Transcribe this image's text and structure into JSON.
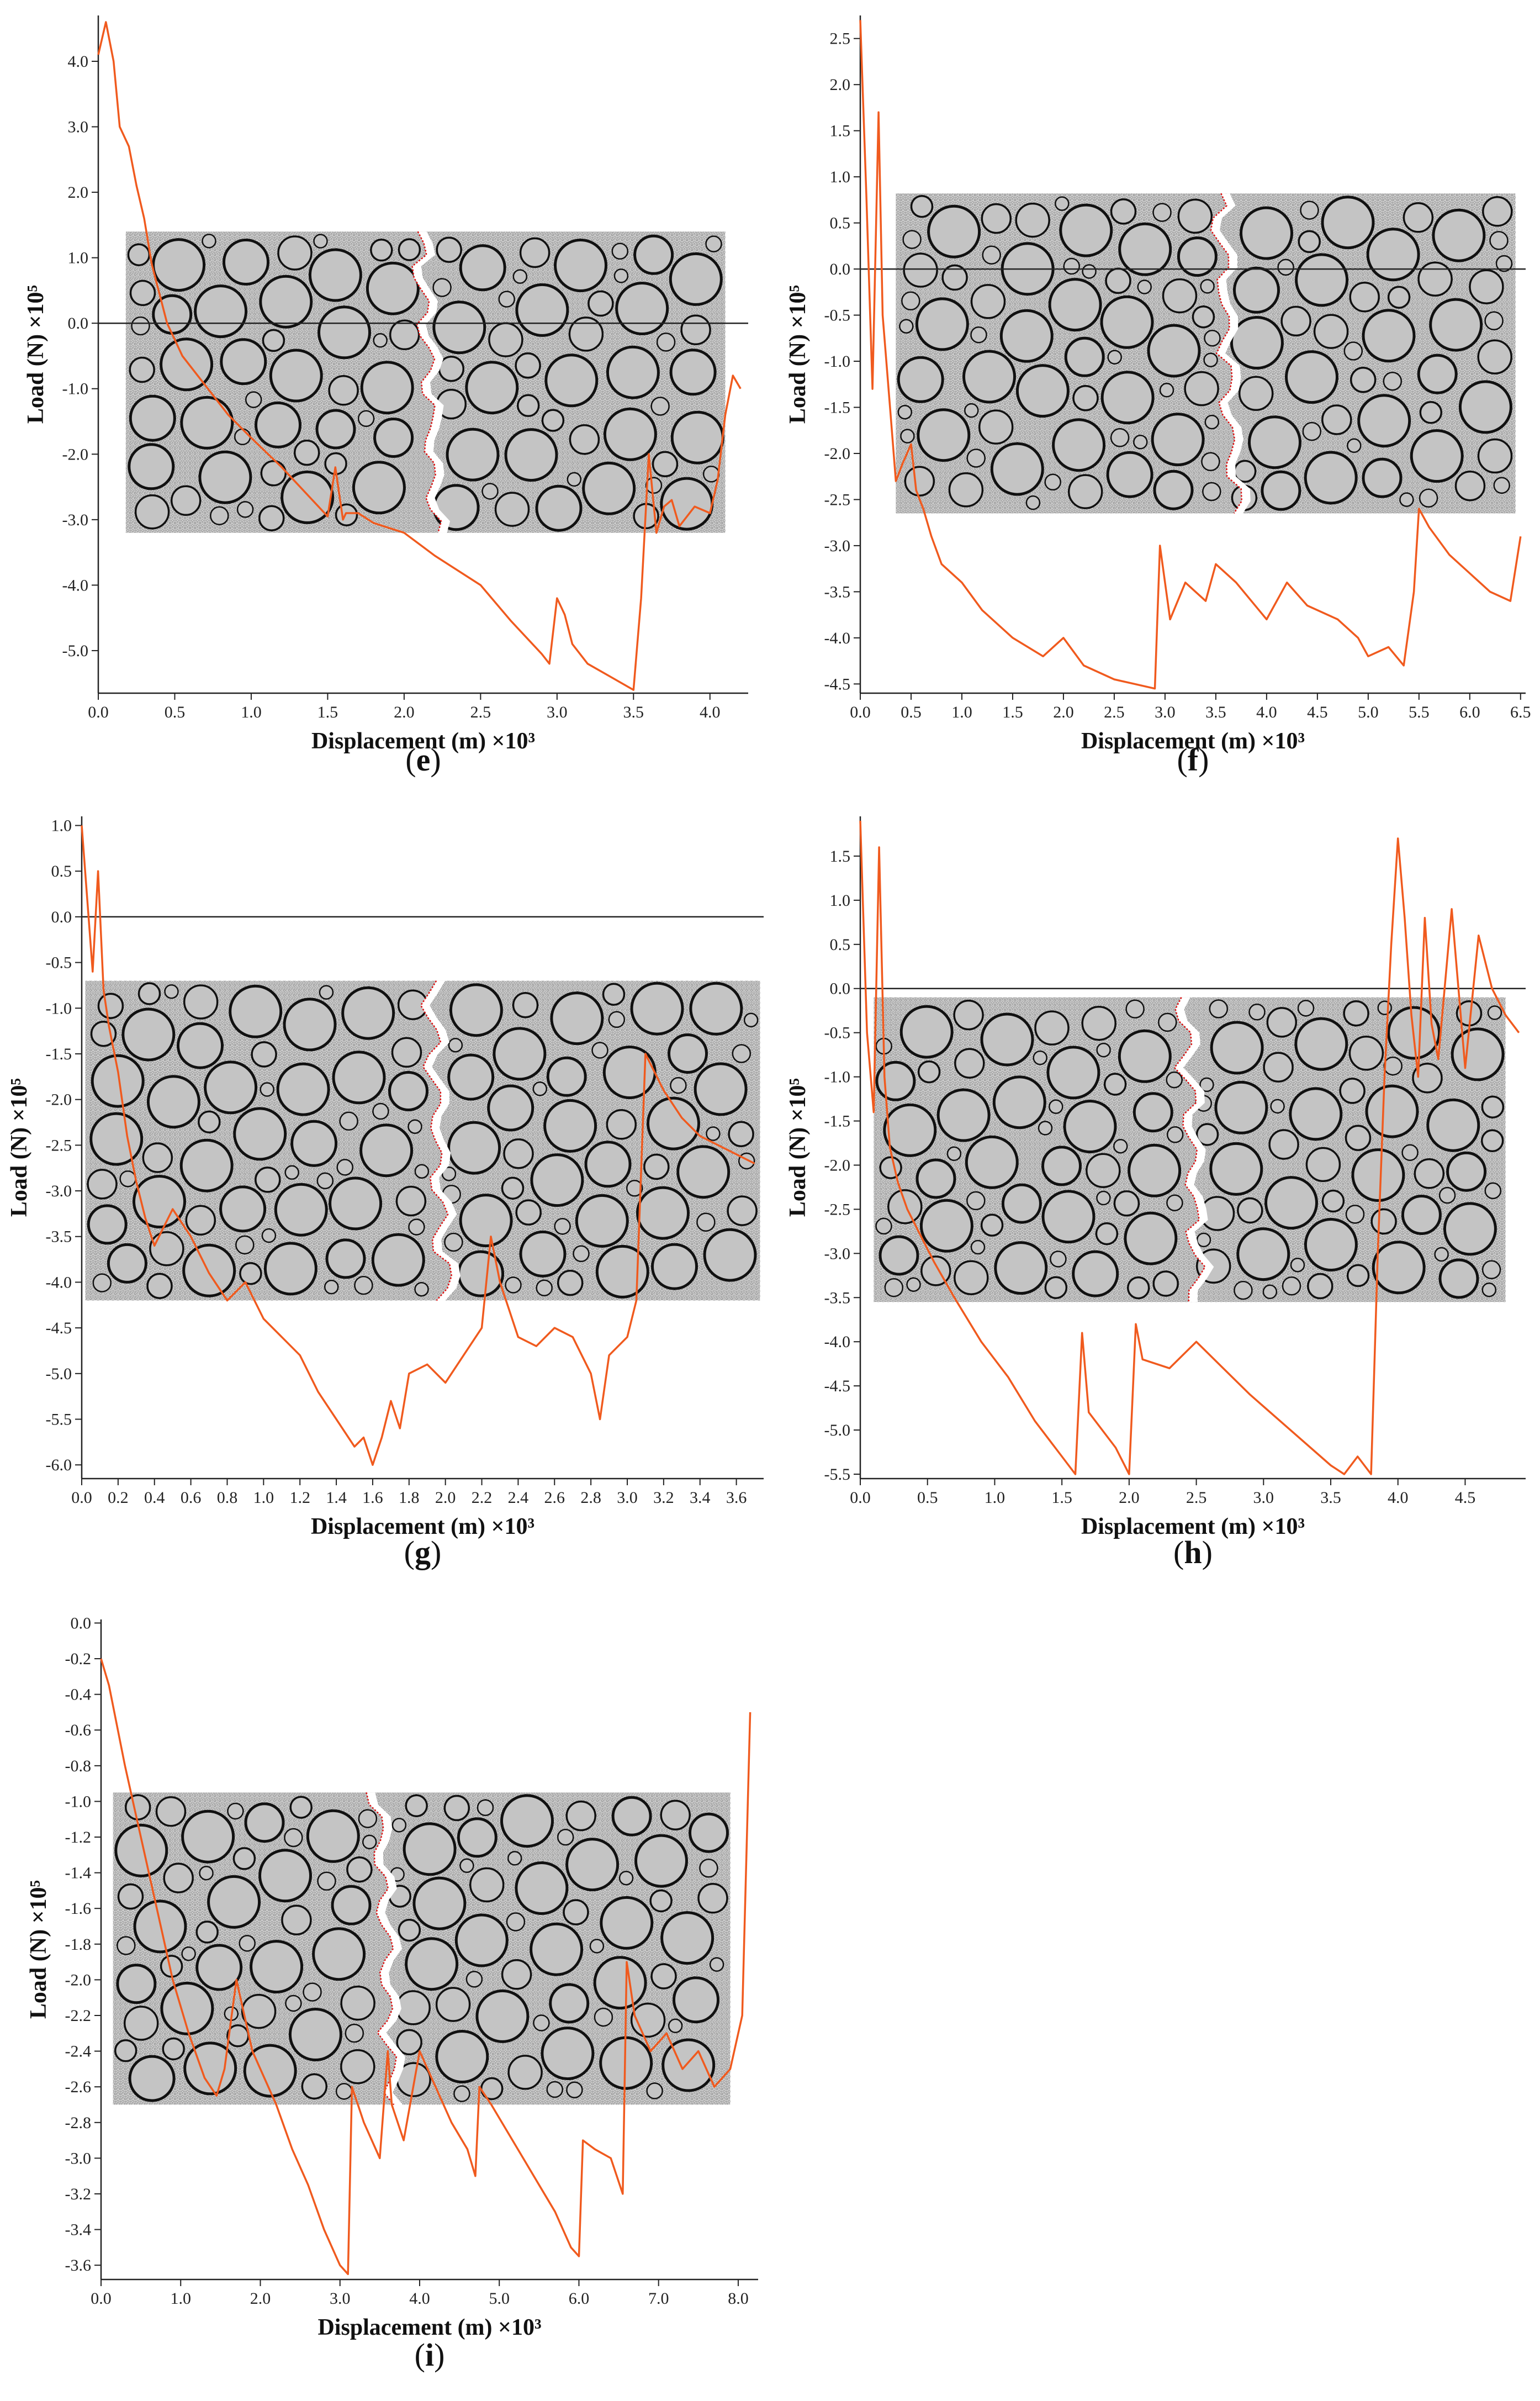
{
  "figure": {
    "colors": {
      "curve": "#f05a1e",
      "axis": "#222222",
      "zero_line": "#222222",
      "specimen_bg": "#d6d6d6",
      "aggregate_fill": "#c4c4c4",
      "aggregate_stroke": "#111111",
      "crack": "#dd1111"
    },
    "icons": {
      "specimen": "concrete-specimen-image"
    }
  },
  "chart_data": [
    {
      "id": "e",
      "type": "line",
      "label": "e",
      "xlabel": "Displacement (m) ×10³",
      "ylabel": "Load (N) ×10⁵",
      "xlim": [
        0,
        4.25
      ],
      "ylim": [
        -5.65,
        4.7
      ],
      "x_ticks": [
        "0.0",
        "0.5",
        "1.0",
        "1.5",
        "2.0",
        "2.5",
        "3.0",
        "3.5",
        "4.0"
      ],
      "y_ticks": [
        "4.0",
        "3.0",
        "2.0",
        "1.0",
        "0.0",
        "-1.0",
        "-2.0",
        "-3.0",
        "-4.0",
        "-5.0"
      ],
      "zero_line": true,
      "specimen": {
        "x": [
          0.18,
          4.1
        ],
        "y": [
          -3.2,
          1.4
        ],
        "crack_x": 2.15
      },
      "series": [
        {
          "name": "load-displacement",
          "x": [
            0.0,
            0.05,
            0.1,
            0.14,
            0.2,
            0.25,
            0.3,
            0.35,
            0.45,
            0.55,
            0.7,
            0.85,
            1.0,
            1.2,
            1.4,
            1.5,
            1.55,
            1.6,
            1.62,
            1.7,
            1.8,
            2.0,
            2.2,
            2.5,
            2.7,
            2.9,
            2.95,
            3.0,
            3.05,
            3.1,
            3.2,
            3.35,
            3.5,
            3.55,
            3.6,
            3.65,
            3.7,
            3.75,
            3.8,
            3.9,
            4.0,
            4.05,
            4.1,
            4.15,
            4.2
          ],
          "y": [
            4.1,
            4.6,
            4.0,
            3.0,
            2.7,
            2.1,
            1.6,
            0.9,
            0.0,
            -0.5,
            -0.95,
            -1.4,
            -1.75,
            -2.2,
            -2.7,
            -2.95,
            -2.2,
            -3.0,
            -2.9,
            -2.9,
            -3.05,
            -3.2,
            -3.55,
            -4.0,
            -4.55,
            -5.05,
            -5.2,
            -4.2,
            -4.45,
            -4.9,
            -5.2,
            -5.4,
            -5.6,
            -4.2,
            -2.0,
            -3.2,
            -2.8,
            -2.7,
            -3.1,
            -2.8,
            -2.9,
            -2.4,
            -1.4,
            -0.8,
            -1.0
          ]
        }
      ]
    },
    {
      "id": "f",
      "type": "line",
      "label": "f",
      "xlabel": "Displacement (m) ×10³",
      "ylabel": "Load (N) ×10⁵",
      "xlim": [
        0,
        6.55
      ],
      "ylim": [
        -4.6,
        2.75
      ],
      "x_ticks": [
        "0.0",
        "0.5",
        "1.0",
        "1.5",
        "2.0",
        "2.5",
        "3.0",
        "3.5",
        "4.0",
        "4.5",
        "5.0",
        "5.5",
        "6.0",
        "6.5"
      ],
      "y_ticks": [
        "2.5",
        "2.0",
        "1.5",
        "1.0",
        "0.5",
        "0.0",
        "-0.5",
        "-1.0",
        "-1.5",
        "-2.0",
        "-2.5",
        "-3.0",
        "-3.5",
        "-4.0",
        "-4.5"
      ],
      "zero_line": true,
      "specimen": {
        "x": [
          0.35,
          6.45
        ],
        "y": [
          -2.65,
          0.82
        ],
        "crack_x": 3.6
      },
      "series": [
        {
          "name": "load-displacement",
          "x": [
            0.0,
            0.06,
            0.12,
            0.18,
            0.22,
            0.3,
            0.35,
            0.42,
            0.5,
            0.55,
            0.62,
            0.7,
            0.8,
            1.0,
            1.2,
            1.5,
            1.8,
            2.0,
            2.2,
            2.5,
            2.7,
            2.9,
            2.95,
            3.0,
            3.05,
            3.2,
            3.4,
            3.5,
            3.7,
            4.0,
            4.2,
            4.4,
            4.7,
            4.9,
            5.0,
            5.2,
            5.35,
            5.45,
            5.5,
            5.6,
            5.8,
            6.0,
            6.2,
            6.4,
            6.5
          ],
          "y": [
            2.7,
            0.8,
            -1.3,
            1.7,
            -0.5,
            -1.6,
            -2.3,
            -2.1,
            -1.9,
            -2.4,
            -2.6,
            -2.9,
            -3.2,
            -3.4,
            -3.7,
            -4.0,
            -4.2,
            -4.0,
            -4.3,
            -4.45,
            -4.5,
            -4.55,
            -3.0,
            -3.4,
            -3.8,
            -3.4,
            -3.6,
            -3.2,
            -3.4,
            -3.8,
            -3.4,
            -3.65,
            -3.8,
            -4.0,
            -4.2,
            -4.1,
            -4.3,
            -3.5,
            -2.6,
            -2.8,
            -3.1,
            -3.3,
            -3.5,
            -3.6,
            -2.9
          ]
        }
      ]
    },
    {
      "id": "g",
      "type": "line",
      "label": "g",
      "xlabel": "Displacement (m) ×10³",
      "ylabel": "Load (N) ×10⁵",
      "xlim": [
        0,
        3.75
      ],
      "ylim": [
        -6.15,
        1.1
      ],
      "x_ticks": [
        "0.0",
        "0.2",
        "0.4",
        "0.6",
        "0.8",
        "1.0",
        "1.2",
        "1.4",
        "1.6",
        "1.8",
        "2.0",
        "2.2",
        "2.4",
        "2.6",
        "2.8",
        "3.0",
        "3.2",
        "3.4",
        "3.6"
      ],
      "y_ticks": [
        "1.0",
        "0.5",
        "0.0",
        "-0.5",
        "-1.0",
        "-1.5",
        "-2.0",
        "-2.5",
        "-3.0",
        "-3.5",
        "-4.0",
        "-4.5",
        "-5.0",
        "-5.5",
        "-6.0"
      ],
      "zero_line": true,
      "specimen": {
        "x": [
          0.02,
          3.73
        ],
        "y": [
          -4.2,
          -0.7
        ],
        "crack_x": 1.95
      },
      "series": [
        {
          "name": "load-displacement",
          "x": [
            0.0,
            0.03,
            0.06,
            0.09,
            0.12,
            0.15,
            0.2,
            0.25,
            0.3,
            0.35,
            0.4,
            0.5,
            0.6,
            0.7,
            0.8,
            0.9,
            1.0,
            1.1,
            1.2,
            1.3,
            1.4,
            1.5,
            1.55,
            1.6,
            1.65,
            1.7,
            1.75,
            1.8,
            1.9,
            2.0,
            2.1,
            2.2,
            2.25,
            2.3,
            2.4,
            2.5,
            2.6,
            2.7,
            2.8,
            2.85,
            2.9,
            3.0,
            3.05,
            3.1,
            3.2,
            3.3,
            3.4,
            3.5,
            3.6,
            3.7
          ],
          "y": [
            1.0,
            0.2,
            -0.6,
            0.5,
            -0.8,
            -1.2,
            -1.7,
            -2.4,
            -2.9,
            -3.3,
            -3.6,
            -3.2,
            -3.5,
            -3.9,
            -4.2,
            -4.0,
            -4.4,
            -4.6,
            -4.8,
            -5.2,
            -5.5,
            -5.8,
            -5.7,
            -6.0,
            -5.7,
            -5.3,
            -5.6,
            -5.0,
            -4.9,
            -5.1,
            -4.8,
            -4.5,
            -3.5,
            -4.0,
            -4.6,
            -4.7,
            -4.5,
            -4.6,
            -5.0,
            -5.5,
            -4.8,
            -4.6,
            -4.2,
            -1.5,
            -1.9,
            -2.2,
            -2.4,
            -2.5,
            -2.6,
            -2.7
          ]
        }
      ]
    },
    {
      "id": "h",
      "type": "line",
      "label": "h",
      "xlabel": "Displacement (m) ×10³",
      "ylabel": "Load (N) ×10⁵",
      "xlim": [
        0,
        4.95
      ],
      "ylim": [
        -5.55,
        1.95
      ],
      "x_ticks": [
        "0.0",
        "0.5",
        "1.0",
        "1.5",
        "2.0",
        "2.5",
        "3.0",
        "3.5",
        "4.0",
        "4.5"
      ],
      "y_ticks": [
        "1.5",
        "1.0",
        "0.5",
        "0.0",
        "-0.5",
        "-1.0",
        "-1.5",
        "-2.0",
        "-2.5",
        "-3.0",
        "-3.5",
        "-4.0",
        "-4.5",
        "-5.0",
        "-5.5"
      ],
      "zero_line": true,
      "specimen": {
        "x": [
          0.1,
          4.8
        ],
        "y": [
          -3.55,
          -0.1
        ],
        "crack_x": 2.45
      },
      "series": [
        {
          "name": "load-displacement",
          "x": [
            0.0,
            0.05,
            0.1,
            0.14,
            0.18,
            0.22,
            0.28,
            0.35,
            0.45,
            0.55,
            0.7,
            0.9,
            1.1,
            1.3,
            1.5,
            1.6,
            1.65,
            1.7,
            1.9,
            2.0,
            2.05,
            2.1,
            2.3,
            2.5,
            2.7,
            2.9,
            3.2,
            3.5,
            3.6,
            3.7,
            3.8,
            3.85,
            3.9,
            3.95,
            4.0,
            4.05,
            4.1,
            4.15,
            4.2,
            4.25,
            4.3,
            4.4,
            4.5,
            4.6,
            4.7,
            4.8,
            4.9
          ],
          "y": [
            1.9,
            -0.5,
            -1.4,
            1.6,
            -1.0,
            -1.8,
            -2.2,
            -2.5,
            -2.8,
            -3.1,
            -3.5,
            -4.0,
            -4.4,
            -4.9,
            -5.3,
            -5.5,
            -3.9,
            -4.8,
            -5.2,
            -5.5,
            -3.8,
            -4.2,
            -4.3,
            -4.0,
            -4.3,
            -4.6,
            -5.0,
            -5.4,
            -5.5,
            -5.3,
            -5.5,
            -3.0,
            -1.0,
            0.5,
            1.7,
            0.8,
            -0.3,
            -1.0,
            0.8,
            -0.4,
            -0.8,
            0.9,
            -0.9,
            0.6,
            0.0,
            -0.3,
            -0.5
          ]
        }
      ]
    },
    {
      "id": "i",
      "type": "line",
      "label": "i",
      "xlabel": "Displacement (m) ×10³",
      "ylabel": "Load (N) ×10⁵",
      "xlim": [
        0,
        8.25
      ],
      "ylim": [
        -3.68,
        0.02
      ],
      "x_ticks": [
        "0.0",
        "1.0",
        "2.0",
        "3.0",
        "4.0",
        "5.0",
        "6.0",
        "7.0",
        "8.0"
      ],
      "y_ticks": [
        "0.0",
        "-0.2",
        "-0.4",
        "-0.6",
        "-0.8",
        "-1.0",
        "-1.2",
        "-1.4",
        "-1.6",
        "-1.8",
        "-2.0",
        "-2.2",
        "-2.4",
        "-2.6",
        "-2.8",
        "-3.0",
        "-3.2",
        "-3.4",
        "-3.6"
      ],
      "zero_line": false,
      "specimen": {
        "x": [
          0.15,
          7.9
        ],
        "y": [
          -2.7,
          -0.95
        ],
        "crack_x": 3.55
      },
      "series": [
        {
          "name": "load-displacement",
          "x": [
            0.0,
            0.1,
            0.3,
            0.5,
            0.7,
            0.9,
            1.1,
            1.3,
            1.45,
            1.55,
            1.7,
            1.8,
            1.9,
            2.0,
            2.2,
            2.4,
            2.6,
            2.8,
            3.0,
            3.1,
            3.15,
            3.3,
            3.5,
            3.6,
            3.65,
            3.8,
            4.0,
            4.2,
            4.4,
            4.6,
            4.7,
            4.75,
            4.9,
            5.1,
            5.3,
            5.5,
            5.7,
            5.9,
            6.0,
            6.05,
            6.2,
            6.4,
            6.55,
            6.6,
            6.7,
            6.9,
            7.1,
            7.3,
            7.5,
            7.7,
            7.9,
            8.05,
            8.15
          ],
          "y": [
            -0.2,
            -0.35,
            -0.8,
            -1.2,
            -1.6,
            -2.0,
            -2.3,
            -2.55,
            -2.65,
            -2.5,
            -2.0,
            -2.2,
            -2.4,
            -2.5,
            -2.7,
            -2.95,
            -3.15,
            -3.4,
            -3.6,
            -3.65,
            -2.6,
            -2.8,
            -3.0,
            -2.4,
            -2.7,
            -2.9,
            -2.4,
            -2.6,
            -2.8,
            -2.95,
            -3.1,
            -2.6,
            -2.7,
            -2.85,
            -3.0,
            -3.15,
            -3.3,
            -3.5,
            -3.55,
            -2.9,
            -2.95,
            -3.0,
            -3.2,
            -1.9,
            -2.2,
            -2.4,
            -2.3,
            -2.5,
            -2.4,
            -2.6,
            -2.5,
            -2.2,
            -0.5
          ]
        }
      ]
    }
  ]
}
